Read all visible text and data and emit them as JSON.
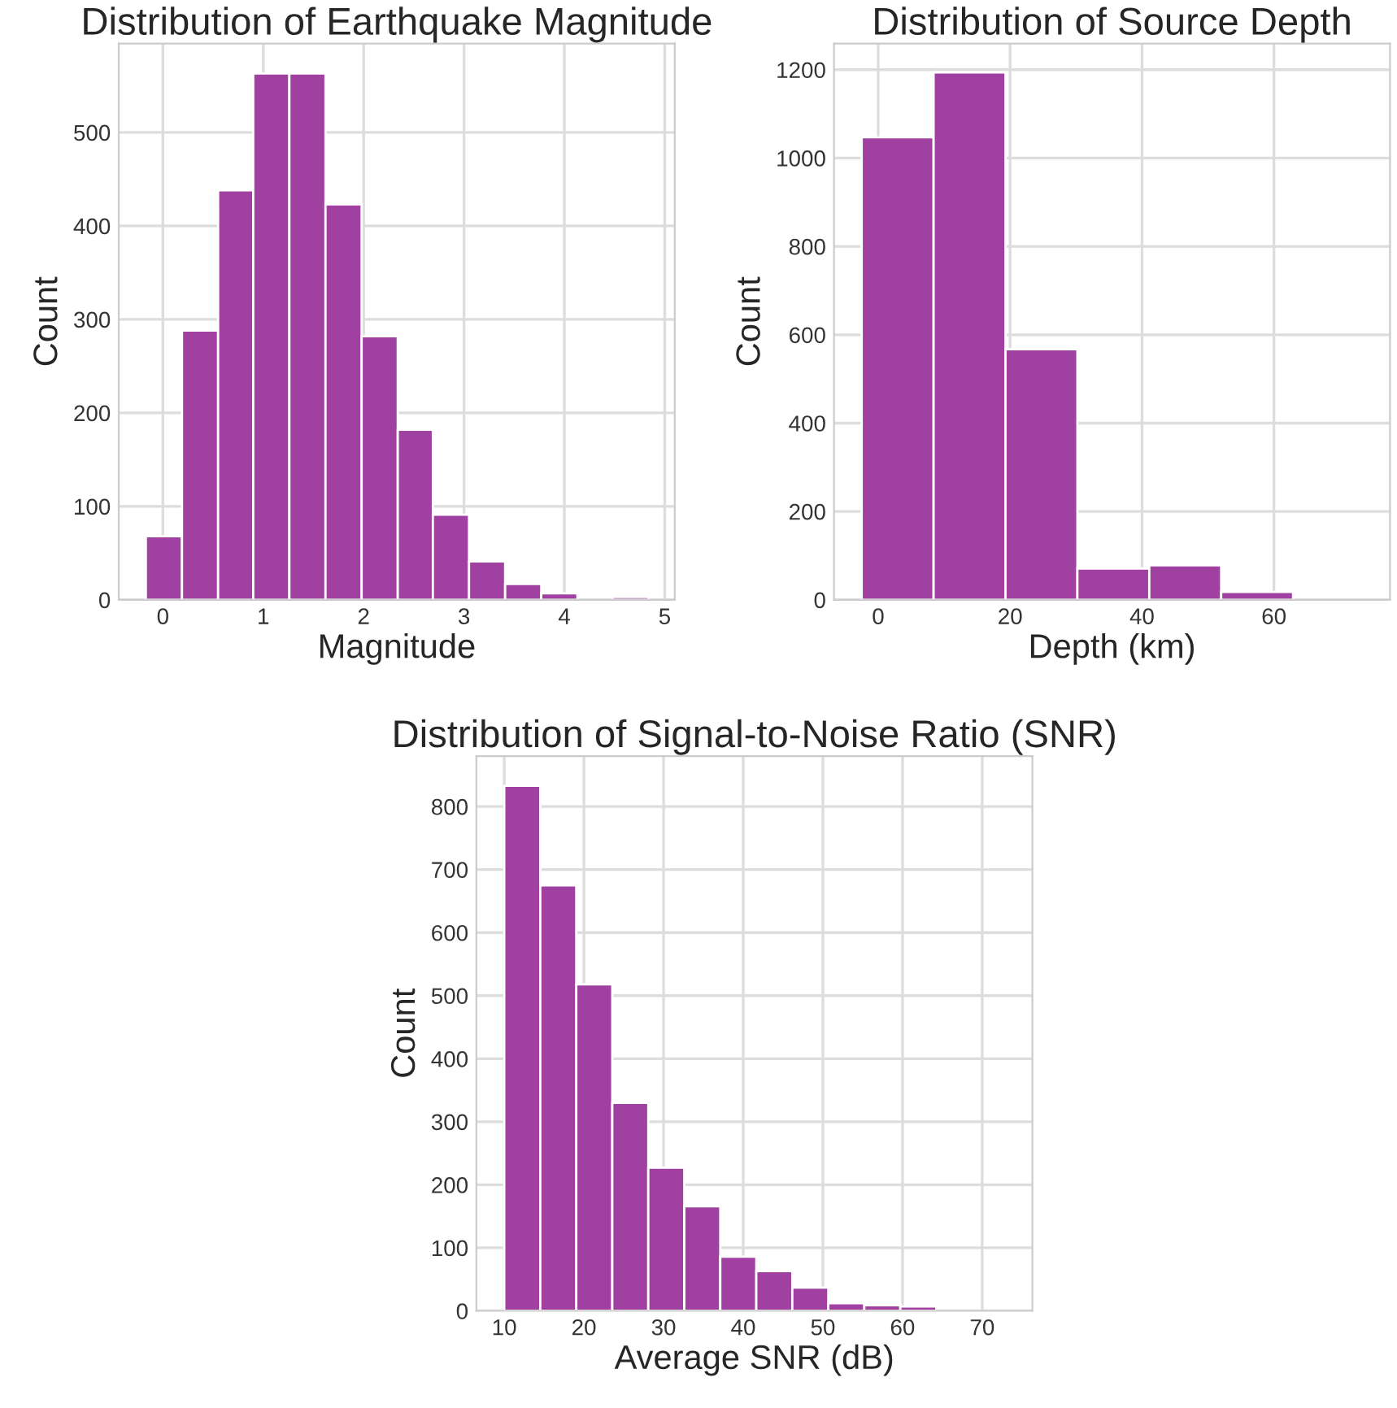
{
  "chart_data": [
    {
      "type": "histogram",
      "title": "Distribution of Earthquake Magnitude",
      "xlabel": "Magnitude",
      "ylabel": "Count",
      "color": "#a040a0",
      "bins": [
        -0.17,
        0.19,
        0.55,
        0.9,
        1.26,
        1.62,
        1.98,
        2.34,
        2.69,
        3.05,
        3.41,
        3.77,
        4.13,
        4.48,
        4.84
      ],
      "values": [
        68,
        288,
        438,
        563,
        563,
        423,
        282,
        182,
        91,
        41,
        17,
        7,
        0,
        3
      ],
      "xlim": [
        -0.44,
        5.1
      ],
      "xticks": [
        0,
        1,
        2,
        3,
        4,
        5
      ],
      "ylim": [
        0,
        595
      ],
      "yticks": [
        0,
        100,
        200,
        300,
        400,
        500
      ],
      "grid": true
    },
    {
      "type": "histogram",
      "title": "Distribution of Source Depth",
      "xlabel": "Depth (km)",
      "ylabel": "Count",
      "color": "#a040a0",
      "bins": [
        -2.5,
        8.4,
        19.3,
        30.2,
        41.1,
        52.0,
        62.9
      ],
      "values": [
        1047,
        1194,
        567,
        71,
        78,
        18
      ],
      "xlim": [
        -6.7,
        77.6
      ],
      "xticks": [
        0,
        20,
        40,
        60
      ],
      "ylim": [
        0,
        1259
      ],
      "yticks": [
        0,
        200,
        400,
        600,
        800,
        1000,
        1200
      ],
      "grid": true
    },
    {
      "type": "histogram",
      "title": "Distribution of Signal-to-Noise Ratio (SNR)",
      "xlabel": "Average SNR (dB)",
      "ylabel": "Count",
      "color": "#a040a0",
      "bins": [
        10,
        14.52,
        19.04,
        23.56,
        28.08,
        32.6,
        37.12,
        41.64,
        46.16,
        50.68,
        55.2,
        59.72,
        64.24
      ],
      "values": [
        833,
        675,
        518,
        330,
        227,
        166,
        86,
        63,
        37,
        12,
        9,
        7
      ],
      "xlim": [
        6.5,
        76.3
      ],
      "xticks": [
        10,
        20,
        30,
        40,
        50,
        60,
        70
      ],
      "ylim": [
        0,
        880
      ],
      "yticks": [
        0,
        100,
        200,
        300,
        400,
        500,
        600,
        700,
        800
      ],
      "grid": true
    }
  ]
}
